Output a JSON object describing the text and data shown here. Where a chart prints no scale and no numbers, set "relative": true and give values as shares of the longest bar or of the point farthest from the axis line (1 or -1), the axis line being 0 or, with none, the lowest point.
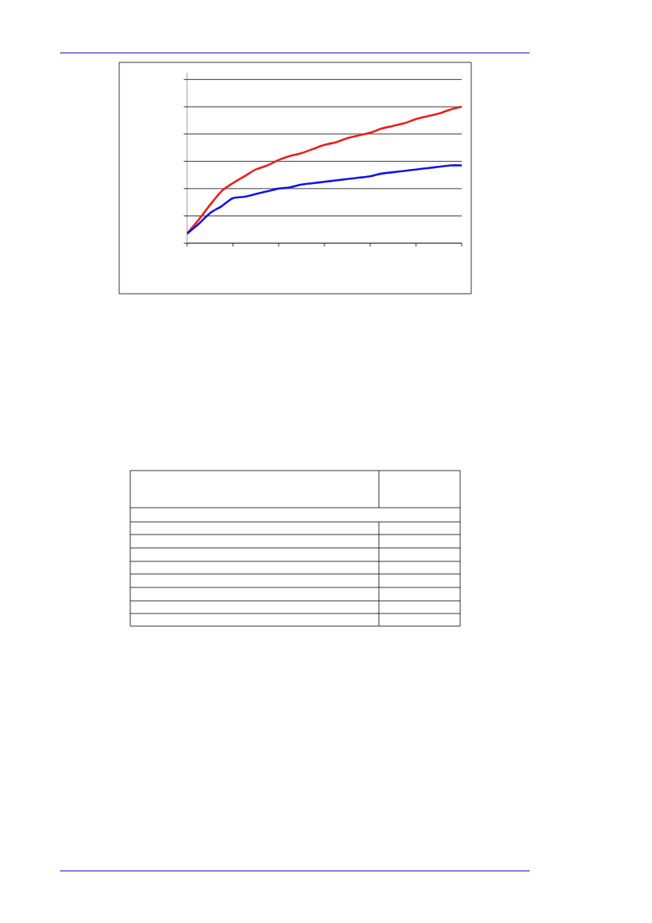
{
  "chart_data": {
    "type": "line",
    "relative": true,
    "grid": "y",
    "categories": [
      null,
      null,
      null,
      null,
      null,
      null,
      null,
      null,
      null,
      null,
      null,
      null,
      null,
      null,
      null,
      null,
      null,
      null,
      null,
      null,
      null,
      null,
      null,
      null,
      null
    ],
    "series": [
      {
        "color": "#ee1c1c",
        "values": [
          0.07,
          0.17,
          0.28,
          0.38,
          0.44,
          0.49,
          0.54,
          0.57,
          0.61,
          0.64,
          0.66,
          0.69,
          0.72,
          0.74,
          0.77,
          0.79,
          0.81,
          0.84,
          0.86,
          0.88,
          0.91,
          0.93,
          0.95,
          0.98,
          1.0
        ]
      },
      {
        "color": "#1414e6",
        "values": [
          0.07,
          0.14,
          0.22,
          0.27,
          0.33,
          0.34,
          0.36,
          0.38,
          0.4,
          0.41,
          0.43,
          0.44,
          0.45,
          0.46,
          0.47,
          0.48,
          0.49,
          0.51,
          0.52,
          0.53,
          0.54,
          0.55,
          0.56,
          0.57,
          0.57
        ]
      }
    ]
  }
}
